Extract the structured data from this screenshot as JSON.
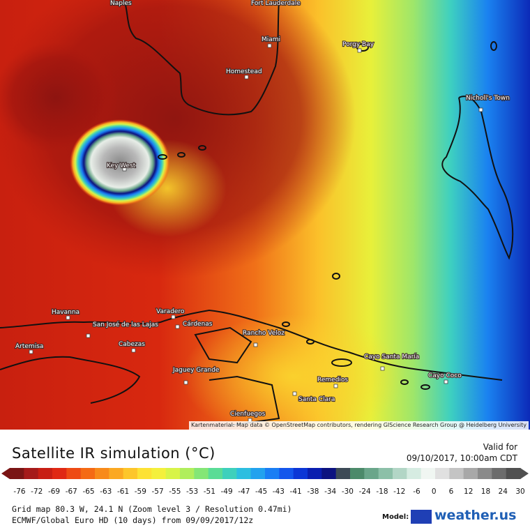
{
  "map": {
    "credit": "Kartenmaterial: Map data © OpenStreetMap contributors, rendering GIScience Research Group @ Heidelberg University",
    "cities": [
      {
        "name": "Naples"
      },
      {
        "name": "Fort Lauderdale"
      },
      {
        "name": "Miami"
      },
      {
        "name": "Porgy Bay"
      },
      {
        "name": "Homestead"
      },
      {
        "name": "Nicholl's Town"
      },
      {
        "name": "Key West"
      },
      {
        "name": "Havanna"
      },
      {
        "name": "Varadero"
      },
      {
        "name": "Cárdenas"
      },
      {
        "name": "San José de las Lajas"
      },
      {
        "name": "Artemisa"
      },
      {
        "name": "Cabezas"
      },
      {
        "name": "Rancho Veloz"
      },
      {
        "name": "Jaguey Grande"
      },
      {
        "name": "Cayo Santa María"
      },
      {
        "name": "Remedios"
      },
      {
        "name": "Cayo Coco"
      },
      {
        "name": "Santa Clara"
      },
      {
        "name": "Cienfuegos"
      }
    ]
  },
  "legend": {
    "title": "Satellite IR simulation (°C)",
    "valid_label": "Valid for",
    "valid_time": "09/10/2017, 10:00am CDT",
    "ticks": [
      "-76",
      "-72",
      "-69",
      "-67",
      "-65",
      "-63",
      "-61",
      "-59",
      "-57",
      "-55",
      "-53",
      "-51",
      "-49",
      "-47",
      "-45",
      "-43",
      "-41",
      "-38",
      "-34",
      "-30",
      "-24",
      "-18",
      "-12",
      "-6",
      "0",
      "6",
      "12",
      "18",
      "24",
      "30"
    ],
    "colors": [
      "#7a1414",
      "#a51a1a",
      "#c81e14",
      "#e02814",
      "#ee4a14",
      "#f56a14",
      "#f88a1a",
      "#fba822",
      "#fdc62a",
      "#fde234",
      "#f4f03c",
      "#d8f448",
      "#b0ee5c",
      "#84e676",
      "#5adc96",
      "#3ed0bc",
      "#2cbee0",
      "#22a2ee",
      "#1a7ef4",
      "#1456ec",
      "#0c36d6",
      "#0a1eb0",
      "#0c1280",
      "#3c4a56",
      "#4c8a6a",
      "#6aa68a",
      "#8cc0a8",
      "#b2d6c6",
      "#d6ece2",
      "#f0f6f2",
      "#e0e0e0",
      "#c4c4c4",
      "#a8a8a8",
      "#8a8a8a",
      "#6c6c6c",
      "#505050"
    ]
  },
  "grid_info": "Grid map 80.3 W, 24.1 N (Zoom level 3 / Resolution 0.47mi)",
  "model_info": "ECMWF/Global Euro HD (10 days) from 09/09/2017/12z",
  "model_label": "Model:",
  "brand": "weather.us"
}
